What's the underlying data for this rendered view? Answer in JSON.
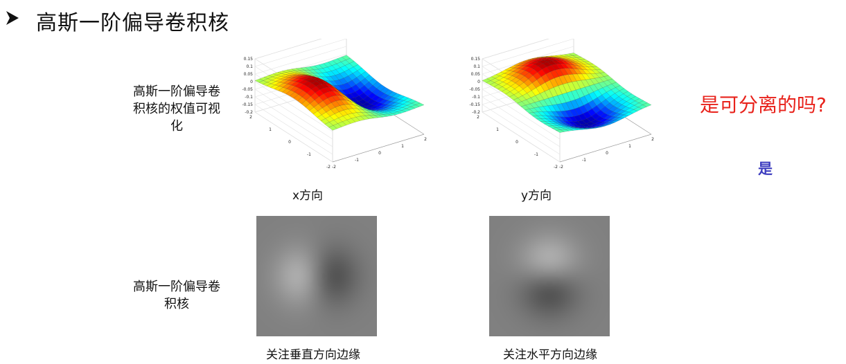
{
  "slide": {
    "bullet_icon": "triangle-bullet-icon",
    "title": "高斯一阶偏导卷积核",
    "label_weights": [
      "高斯一阶偏导卷",
      "积核的权值可视",
      "化"
    ],
    "label_kernel": [
      "高斯一阶偏导卷",
      "积核"
    ],
    "caption_x": "x方向",
    "caption_y": "y方向",
    "caption_vertical": "关注垂直方向边缘",
    "caption_horizontal": "关注水平方向边缘",
    "question": "是可分离的吗?",
    "answer": "是",
    "colors": {
      "question": "#e8221b",
      "answer": "#3c3cbf"
    }
  },
  "surface_plots": {
    "z_ticks": [
      "0.15",
      "0.1",
      "0.05",
      "0",
      "-0.05",
      "-0.1",
      "-0.15",
      "-0.2"
    ],
    "axis_ticks_left": [
      "2",
      "1",
      "0",
      "-1",
      "-2"
    ],
    "axis_ticks_right": [
      "-2",
      "-1",
      "0",
      "1",
      "2"
    ],
    "colormap": "jet"
  }
}
